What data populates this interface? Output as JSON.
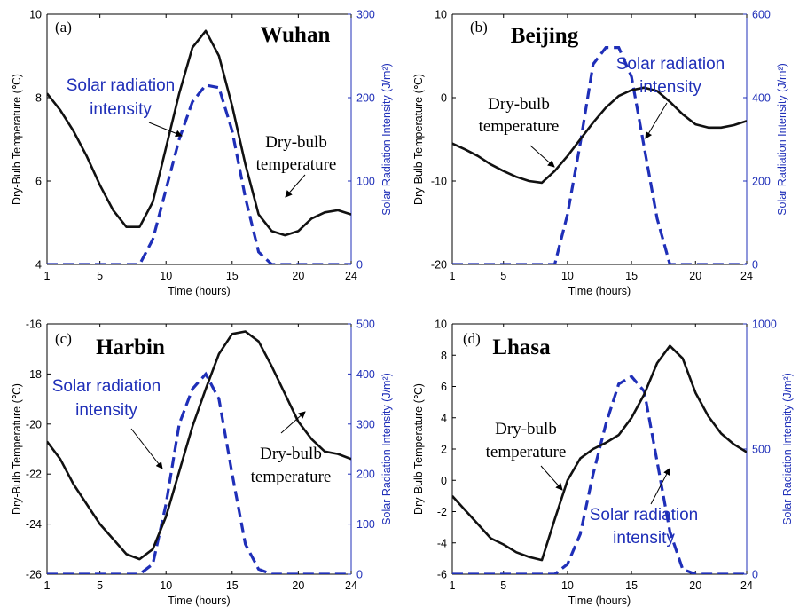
{
  "chart_data": [
    {
      "type": "line",
      "panel_label": "(a)",
      "city": "Wuhan",
      "xlabel": "Time (hours)",
      "ylabel": "Dry-Bulb Temperature (℃)",
      "y2label": "Solar Radiation Intensity (J/m²)",
      "xlim": [
        1,
        24
      ],
      "ylim": [
        4,
        10
      ],
      "y2lim": [
        0,
        300
      ],
      "xticks": [
        "1",
        "5",
        "10",
        "15",
        "20",
        "24"
      ],
      "yticks": [
        "4",
        "6",
        "8",
        "10"
      ],
      "y2ticks": [
        "0",
        "100",
        "200",
        "300"
      ],
      "x": [
        1,
        2,
        3,
        4,
        5,
        6,
        7,
        8,
        9,
        10,
        11,
        12,
        13,
        14,
        15,
        16,
        17,
        18,
        19,
        20,
        21,
        22,
        23,
        24
      ],
      "series": [
        {
          "values": [
            8.1,
            7.7,
            7.2,
            6.6,
            5.9,
            5.3,
            4.9,
            4.9,
            5.5,
            6.8,
            8.1,
            9.2,
            9.6,
            9.0,
            7.8,
            6.4,
            5.2,
            4.8,
            4.7,
            4.8,
            5.1,
            5.25,
            5.3,
            5.2
          ]
        },
        {
          "axis": "right",
          "values": [
            0,
            0,
            0,
            0,
            0,
            0,
            0,
            0,
            30,
            90,
            150,
            195,
            215,
            212,
            160,
            80,
            15,
            0,
            0,
            0,
            0,
            0,
            0,
            0
          ]
        }
      ],
      "annotations": [
        {
          "text": "Solar radiation intensity",
          "lines": [
            "Solar radiation",
            "intensity"
          ]
        },
        {
          "text": "Dry-bulb temperature",
          "lines": [
            "Dry-bulb",
            "temperature"
          ]
        }
      ]
    },
    {
      "type": "line",
      "panel_label": "(b)",
      "city": "Beijing",
      "xlabel": "Time (hours)",
      "ylabel": "Dry-Bulb Temperature (℃)",
      "y2label": "Solar Radiation Intensity (J/m²)",
      "xlim": [
        1,
        24
      ],
      "ylim": [
        -20,
        10
      ],
      "y2lim": [
        0,
        600
      ],
      "xticks": [
        "1",
        "5",
        "10",
        "15",
        "20",
        "24"
      ],
      "yticks": [
        "-20",
        "-10",
        "0",
        "10"
      ],
      "y2ticks": [
        "0",
        "200",
        "400",
        "600"
      ],
      "x": [
        1,
        2,
        3,
        4,
        5,
        6,
        7,
        8,
        9,
        10,
        11,
        12,
        13,
        14,
        15,
        16,
        17,
        18,
        19,
        20,
        21,
        22,
        23,
        24
      ],
      "series": [
        {
          "values": [
            -5.5,
            -6.2,
            -7.0,
            -8.0,
            -8.8,
            -9.5,
            -10.0,
            -10.2,
            -8.8,
            -7.0,
            -5.0,
            -3.0,
            -1.2,
            0.2,
            0.9,
            1.2,
            0.8,
            -0.5,
            -2.0,
            -3.2,
            -3.6,
            -3.6,
            -3.3,
            -2.8
          ]
        },
        {
          "axis": "right",
          "values": [
            0,
            0,
            0,
            0,
            0,
            0,
            0,
            0,
            0,
            120,
            290,
            480,
            520,
            520,
            450,
            280,
            110,
            0,
            0,
            0,
            0,
            0,
            0,
            0
          ]
        }
      ],
      "annotations": [
        {
          "text": "Dry-bulb temperature",
          "lines": [
            "Dry-bulb",
            "temperature"
          ]
        },
        {
          "text": "Solar radiation intensity",
          "lines": [
            "Solar radiation",
            "intensity"
          ]
        }
      ]
    },
    {
      "type": "line",
      "panel_label": "(c)",
      "city": "Harbin",
      "xlabel": "Time (hours)",
      "ylabel": "Dry-Bulb Temperature (℃)",
      "y2label": "Solar Radiation Intensity (J/m²)",
      "xlim": [
        1,
        24
      ],
      "ylim": [
        -26,
        -16
      ],
      "y2lim": [
        0,
        500
      ],
      "xticks": [
        "1",
        "5",
        "10",
        "15",
        "20",
        "24"
      ],
      "yticks": [
        "-26",
        "-24",
        "-22",
        "-20",
        "-18",
        "-16"
      ],
      "y2ticks": [
        "0",
        "100",
        "200",
        "300",
        "400",
        "500"
      ],
      "x": [
        1,
        2,
        3,
        4,
        5,
        6,
        7,
        8,
        9,
        10,
        11,
        12,
        13,
        14,
        15,
        16,
        17,
        18,
        19,
        20,
        21,
        22,
        23,
        24
      ],
      "series": [
        {
          "values": [
            -20.7,
            -21.4,
            -22.4,
            -23.2,
            -24.0,
            -24.6,
            -25.2,
            -25.4,
            -25.0,
            -23.7,
            -21.9,
            -20.1,
            -18.6,
            -17.2,
            -16.4,
            -16.3,
            -16.7,
            -17.7,
            -18.8,
            -19.9,
            -20.6,
            -21.1,
            -21.2,
            -21.4
          ]
        },
        {
          "axis": "right",
          "values": [
            0,
            0,
            0,
            0,
            0,
            0,
            0,
            0,
            20,
            140,
            300,
            370,
            400,
            350,
            200,
            60,
            10,
            0,
            0,
            0,
            0,
            0,
            0,
            0
          ]
        }
      ],
      "annotations": [
        {
          "text": "Solar radiation intensity",
          "lines": [
            "Solar radiation",
            "intensity"
          ]
        },
        {
          "text": "Dry-bulb temperature",
          "lines": [
            "Dry-bulb",
            "temperature"
          ]
        }
      ]
    },
    {
      "type": "line",
      "panel_label": "(d)",
      "city": "Lhasa",
      "xlabel": "Time (hours)",
      "ylabel": "Dry-Bulb Temperature (℃)",
      "y2label": "Solar Radiation Intensity (J/m²)",
      "xlim": [
        1,
        24
      ],
      "ylim": [
        -6,
        10
      ],
      "y2lim": [
        0,
        1000
      ],
      "xticks": [
        "1",
        "5",
        "10",
        "15",
        "20",
        "24"
      ],
      "yticks": [
        "-6",
        "-4",
        "-2",
        "0",
        "2",
        "4",
        "6",
        "8",
        "10"
      ],
      "y2ticks": [
        "0",
        "500",
        "1000"
      ],
      "x": [
        1,
        2,
        3,
        4,
        5,
        6,
        7,
        8,
        9,
        10,
        11,
        12,
        13,
        14,
        15,
        16,
        17,
        18,
        19,
        20,
        21,
        22,
        23,
        24
      ],
      "series": [
        {
          "values": [
            -1.0,
            -1.9,
            -2.8,
            -3.7,
            -4.1,
            -4.6,
            -4.9,
            -5.1,
            -2.5,
            0.0,
            1.4,
            2.0,
            2.4,
            2.9,
            4.0,
            5.5,
            7.5,
            8.6,
            7.8,
            5.6,
            4.1,
            3.0,
            2.3,
            1.8
          ]
        },
        {
          "axis": "right",
          "values": [
            0,
            0,
            0,
            0,
            0,
            0,
            0,
            0,
            0,
            40,
            160,
            400,
            600,
            760,
            790,
            730,
            450,
            170,
            20,
            0,
            0,
            0,
            0,
            0
          ]
        }
      ],
      "annotations": [
        {
          "text": "Dry-bulb temperature",
          "lines": [
            "Dry-bulb",
            "temperature"
          ]
        },
        {
          "text": "Solar radiation intensity",
          "lines": [
            "Solar radiation",
            "intensity"
          ]
        }
      ]
    }
  ]
}
